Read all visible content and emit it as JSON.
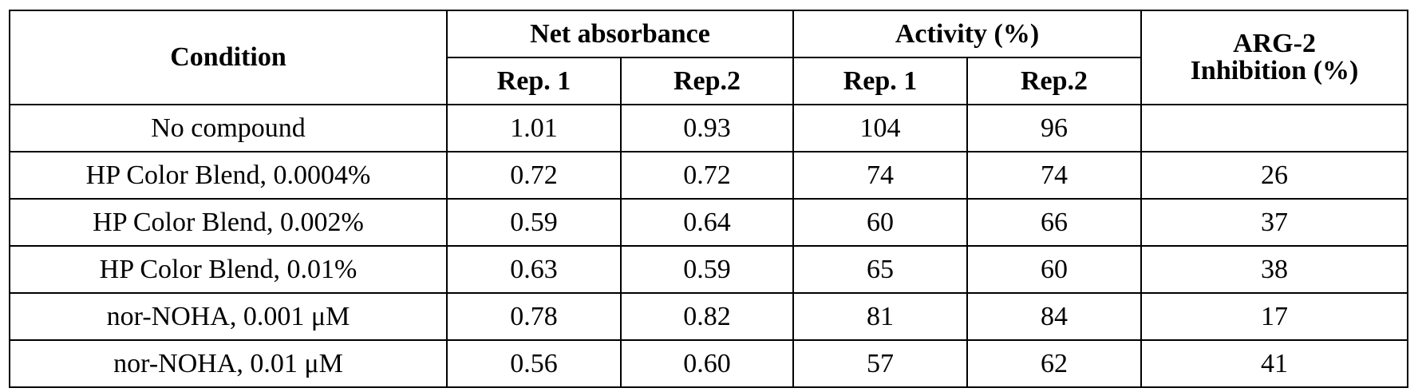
{
  "table": {
    "headers": {
      "condition": "Condition",
      "net_absorbance": "Net absorbance",
      "activity": "Activity (%)",
      "arg2_line1": "ARG-2",
      "arg2_line2": "Inhibition (%)",
      "rep1": "Rep. 1",
      "rep2": "Rep.2"
    },
    "rows": [
      {
        "condition": "No compound",
        "abs_rep1": "1.01",
        "abs_rep2": "0.93",
        "act_rep1": "104",
        "act_rep2": "96",
        "inhibition": ""
      },
      {
        "condition": "HP Color Blend, 0.0004%",
        "abs_rep1": "0.72",
        "abs_rep2": "0.72",
        "act_rep1": "74",
        "act_rep2": "74",
        "inhibition": "26"
      },
      {
        "condition": "HP Color Blend, 0.002%",
        "abs_rep1": "0.59",
        "abs_rep2": "0.64",
        "act_rep1": "60",
        "act_rep2": "66",
        "inhibition": "37"
      },
      {
        "condition": "HP Color Blend, 0.01%",
        "abs_rep1": "0.63",
        "abs_rep2": "0.59",
        "act_rep1": "65",
        "act_rep2": "60",
        "inhibition": "38"
      },
      {
        "condition": "nor-NOHA, 0.001 μM",
        "abs_rep1": "0.78",
        "abs_rep2": "0.82",
        "act_rep1": "81",
        "act_rep2": "84",
        "inhibition": "17"
      },
      {
        "condition": "nor-NOHA, 0.01 μM",
        "abs_rep1": "0.56",
        "abs_rep2": "0.60",
        "act_rep1": "57",
        "act_rep2": "62",
        "inhibition": "41"
      }
    ]
  }
}
